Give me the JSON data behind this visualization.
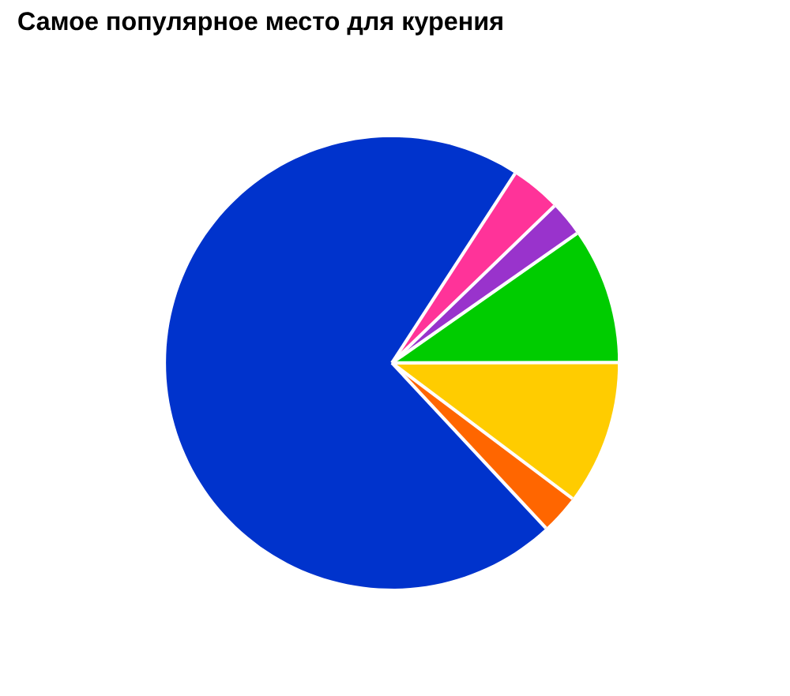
{
  "chart_data": {
    "type": "pie",
    "title": "Самое популярное место для курения",
    "categories": [
      null,
      null,
      null,
      null,
      null,
      null
    ],
    "values": [
      3.6,
      2.5,
      9.7,
      10.3,
      2.8,
      71.1
    ],
    "colors": [
      "#ff3399",
      "#9933cc",
      "#00cc00",
      "#ffcc00",
      "#ff6600",
      "#0033cc"
    ]
  }
}
